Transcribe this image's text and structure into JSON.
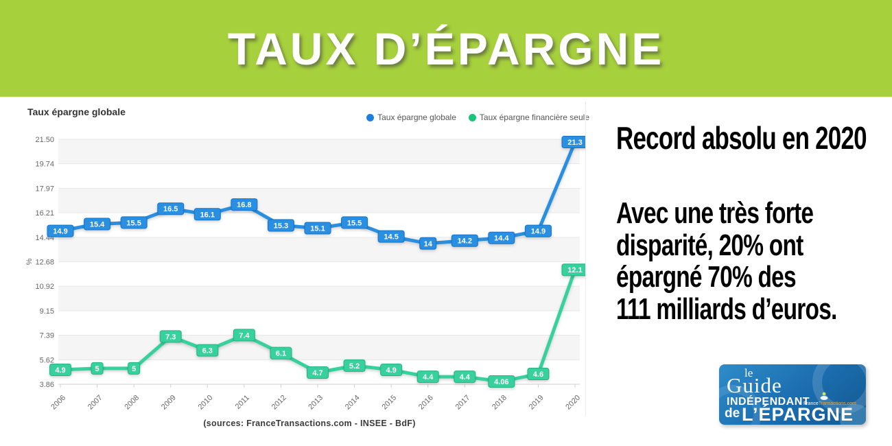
{
  "banner": {
    "title": "TAUX D’ÉPARGNE",
    "bg_color": "#a6d03c"
  },
  "chart": {
    "title": "Taux épargne globale",
    "legend": [
      {
        "label": "Taux épargne globale",
        "color": "#1d7fe0"
      },
      {
        "label": "Taux épargne financière seule",
        "color": "#19c57b"
      }
    ],
    "source": "(sources: FranceTransactions.com - INSEE - BdF)"
  },
  "chart_data": {
    "type": "line",
    "title": "Taux épargne globale",
    "x": [
      "2006",
      "2007",
      "2008",
      "2009",
      "2010",
      "2011",
      "2012",
      "2013",
      "2014",
      "2015",
      "2016",
      "2017",
      "2018",
      "2019",
      "2020"
    ],
    "series": [
      {
        "name": "Taux épargne globale",
        "color": "#2a8fe0",
        "badge_stroke": "#1273c8",
        "values": [
          14.9,
          15.4,
          15.5,
          16.5,
          16.1,
          16.8,
          15.3,
          15.1,
          15.5,
          14.5,
          14,
          14.2,
          14.4,
          14.9,
          21.3
        ],
        "labels": [
          "14.9",
          "15.4",
          "15.5",
          "16.5",
          "16.1",
          "16.8",
          "15.3",
          "15.1",
          "15.5",
          "14.5",
          "14",
          "14.2",
          "14.4",
          "14.9",
          "21.3"
        ]
      },
      {
        "name": "Taux épargne financière seule",
        "color": "#38d09c",
        "badge_stroke": "#22b286",
        "values": [
          4.9,
          5,
          5,
          7.3,
          6.3,
          7.4,
          6.1,
          4.7,
          5.2,
          4.9,
          4.4,
          4.4,
          4.06,
          4.6,
          12.1
        ],
        "labels": [
          "4.9",
          "5",
          "5",
          "7.3",
          "6.3",
          "7.4",
          "6.1",
          "4.7",
          "5.2",
          "4.9",
          "4.4",
          "4.4",
          "4.06",
          "4.6",
          "12.1"
        ]
      }
    ],
    "ylim": [
      3.86,
      21.5
    ],
    "yticks": [
      21.5,
      19.74,
      17.97,
      16.21,
      14.44,
      12.68,
      10.92,
      9.15,
      7.39,
      5.62,
      3.86
    ],
    "ylabel": "%",
    "grid": true,
    "legend_position": "top-right"
  },
  "annotation": {
    "headline": "Record absolu en 2020",
    "body_lines": [
      "Avec une très forte",
      "disparité, 20% ont",
      "épargné 70% des",
      "111 milliards d’euros."
    ]
  },
  "logo": {
    "line1": "le",
    "line2": "Guide",
    "line3": "INDÉPENDANT",
    "site_prefix": "France",
    "site_suffix": "Transactions.com",
    "line4_de": "de",
    "line4_main": "L’ÉPARGNE"
  }
}
